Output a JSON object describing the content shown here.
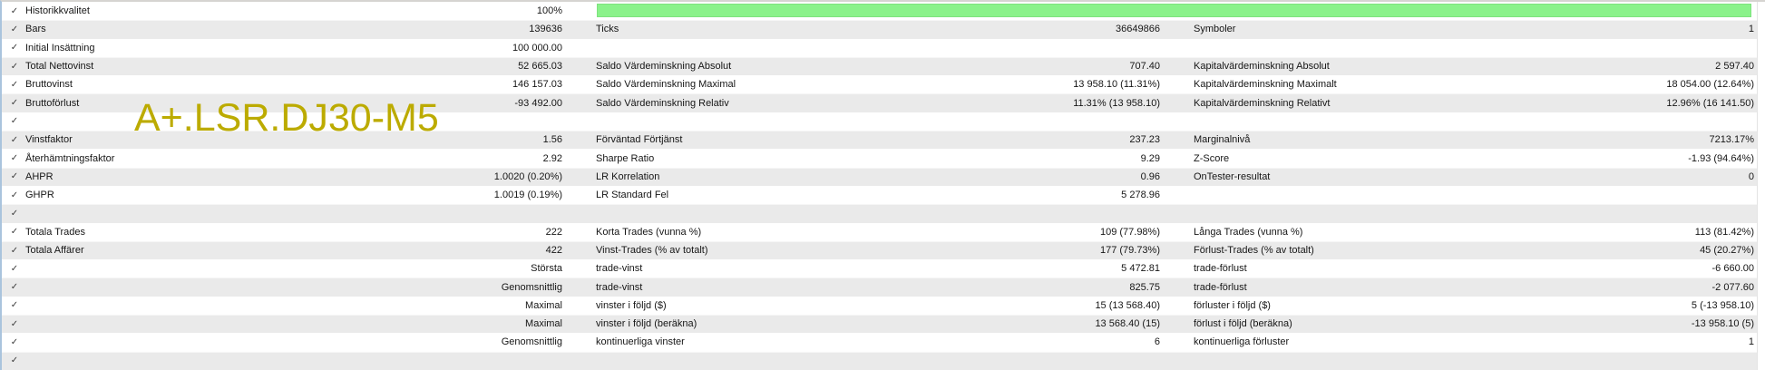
{
  "watermark": "A+.LSR.DJ30-M5",
  "colors": {
    "progress_green": "#8af28a",
    "watermark_yellow": "#bcab00",
    "row_alt_gray": "#eaeaea",
    "left_border_blue": "#aac4dd"
  },
  "icons": {
    "row_check": "✓"
  },
  "report": {
    "rows": [
      {
        "c1l": "Historikkvalitet",
        "c1v": "100%",
        "progress_bar": true
      },
      {
        "c1l": "Bars",
        "c1v": "139636",
        "c2l": "Ticks",
        "c2v": "36649866",
        "c3l": "Symboler",
        "c3v": "1"
      },
      {
        "c1l": "Initial Insättning",
        "c1v": "100 000.00"
      },
      {
        "c1l": "Total Nettovinst",
        "c1v": "52 665.03",
        "c2l": "Saldo Värdeminskning Absolut",
        "c2v": "707.40",
        "c3l": "Kapitalvärdeminskning Absolut",
        "c3v": "2 597.40"
      },
      {
        "c1l": "Bruttovinst",
        "c1v": "146 157.03",
        "c2l": "Saldo Värdeminskning Maximal",
        "c2v": "13 958.10 (11.31%)",
        "c3l": "Kapitalvärdeminskning Maximalt",
        "c3v": "18 054.00 (12.64%)"
      },
      {
        "c1l": "Bruttoförlust",
        "c1v": "-93 492.00",
        "c2l": "Saldo Värdeminskning Relativ",
        "c2v": "11.31% (13 958.10)",
        "c3l": "Kapitalvärdeminskning Relativt",
        "c3v": "12.96% (16 141.50)"
      },
      {},
      {
        "c1l": "Vinstfaktor",
        "c1v": "1.56",
        "c2l": "Förväntad Förtjänst",
        "c2v": "237.23",
        "c3l": "Marginalnivå",
        "c3v": "7213.17%"
      },
      {
        "c1l": "Återhämtningsfaktor",
        "c1v": "2.92",
        "c2l": "Sharpe Ratio",
        "c2v": "9.29",
        "c3l": "Z-Score",
        "c3v": "-1.93 (94.64%)"
      },
      {
        "c1l": "AHPR",
        "c1v": "1.0020 (0.20%)",
        "c2l": "LR Korrelation",
        "c2v": "0.96",
        "c3l": "OnTester-resultat",
        "c3v": "0"
      },
      {
        "c1l": "GHPR",
        "c1v": "1.0019 (0.19%)",
        "c2l": "LR Standard Fel",
        "c2v": "5 278.96"
      },
      {},
      {
        "c1l": "Totala Trades",
        "c1v": "222",
        "c2l": "Korta Trades (vunna %)",
        "c2v": "109 (77.98%)",
        "c3l": "Långa Trades (vunna %)",
        "c3v": "113 (81.42%)"
      },
      {
        "c1l": "Totala Affärer",
        "c1v": "422",
        "c2l": "Vinst-Trades (% av totalt)",
        "c2v": "177 (79.73%)",
        "c3l": "Förlust-Trades (% av totalt)",
        "c3v": "45 (20.27%)"
      },
      {
        "c1v": "Största",
        "c2l": "trade-vinst",
        "c2v": "5 472.81",
        "c3l": "trade-förlust",
        "c3v": "-6 660.00"
      },
      {
        "c1v": "Genomsnittlig",
        "c2l": "trade-vinst",
        "c2v": "825.75",
        "c3l": "trade-förlust",
        "c3v": "-2 077.60"
      },
      {
        "c1v": "Maximal",
        "c2l": "vinster i följd ($)",
        "c2v": "15 (13 568.40)",
        "c3l": "förluster i följd ($)",
        "c3v": "5 (-13 958.10)"
      },
      {
        "c1v": "Maximal",
        "c2l": "vinster i följd (beräkna)",
        "c2v": "13 568.40 (15)",
        "c3l": "förlust i följd (beräkna)",
        "c3v": "-13 958.10 (5)"
      },
      {
        "c1v": "Genomsnittlig",
        "c2l": "kontinuerliga vinster",
        "c2v": "6",
        "c3l": "kontinuerliga förluster",
        "c3v": "1"
      },
      {}
    ]
  }
}
